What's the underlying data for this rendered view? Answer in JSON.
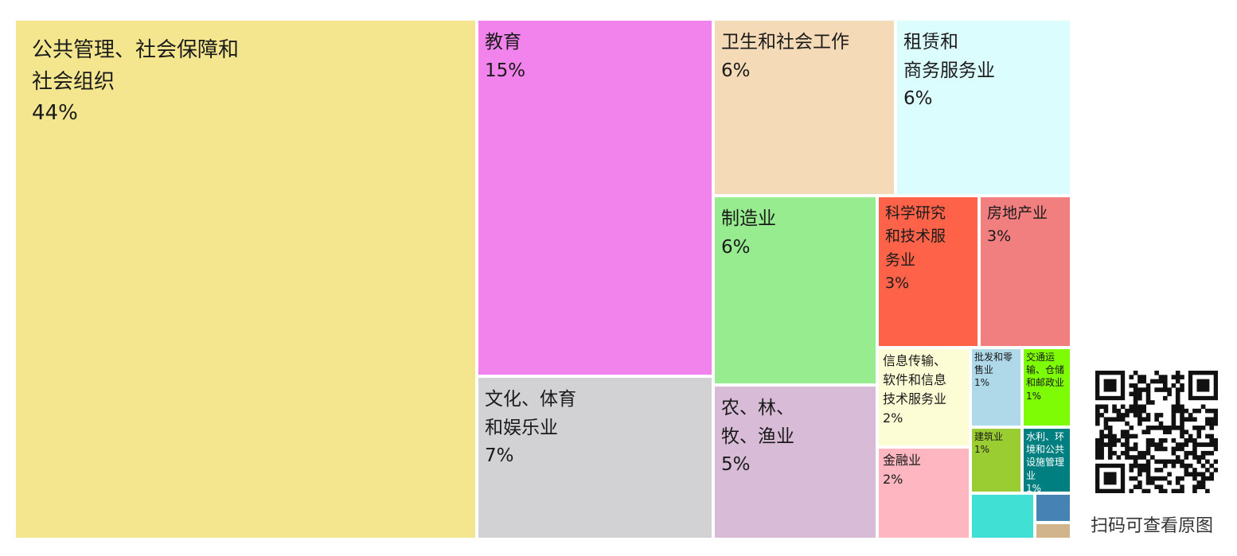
{
  "chart_data": {
    "type": "treemap",
    "nodes": [
      {
        "name": "公共管理、社会保障和\n社会组织",
        "value_label": "44%",
        "value": 44,
        "color": "#f3e68f"
      },
      {
        "name": "教育",
        "value_label": "15%",
        "value": 15,
        "color": "#f283ec"
      },
      {
        "name": "卫生和社会工作",
        "value_label": "6%",
        "value": 6,
        "color": "#f5dab7"
      },
      {
        "name": "租赁和\n商务服务业",
        "value_label": "6%",
        "value": 6,
        "color": "#dcfdfe"
      },
      {
        "name": "文化、体育\n和娱乐业",
        "value_label": "7%",
        "value": 7,
        "color": "#d2d2d4"
      },
      {
        "name": "制造业",
        "value_label": "6%",
        "value": 6,
        "color": "#98ec90"
      },
      {
        "name": "农、林、\n牧、渔业",
        "value_label": "5%",
        "value": 5,
        "color": "#d8bcd7"
      },
      {
        "name": "科学研究\n和技术服\n务业",
        "value_label": "3%",
        "value": 3,
        "color": "#fe634a"
      },
      {
        "name": "房地产业",
        "value_label": "3%",
        "value": 3,
        "color": "#f27f7f"
      },
      {
        "name": "信息传输、\n软件和信息\n技术服务业",
        "value_label": "2%",
        "value": 2,
        "color": "#fcfcd5"
      },
      {
        "name": "批发和零\n售业",
        "value_label": "1%",
        "value": 1,
        "color": "#afd8e9"
      },
      {
        "name": "交通运\n输、仓储\n和邮政业",
        "value_label": "1%",
        "value": 1,
        "color": "#7dfc05"
      },
      {
        "name": "金融业",
        "value_label": "2%",
        "value": 2,
        "color": "#feb7c0"
      },
      {
        "name": "建筑业",
        "value_label": "1%",
        "value": 1,
        "color": "#9acd31"
      },
      {
        "name": "水利、环\n境和公共\n设施管理\n业",
        "value_label": "1%",
        "value": 1,
        "color": "#007f80"
      },
      {
        "name": "",
        "value_label": "",
        "value": 0.6,
        "color": "#40e0d5"
      },
      {
        "name": "",
        "value_label": "",
        "value": 0.3,
        "color": "#4682b4"
      },
      {
        "name": "",
        "value_label": "",
        "value": 0.2,
        "color": "#d2b48c"
      }
    ]
  },
  "qr_caption": "扫码可查看原图"
}
